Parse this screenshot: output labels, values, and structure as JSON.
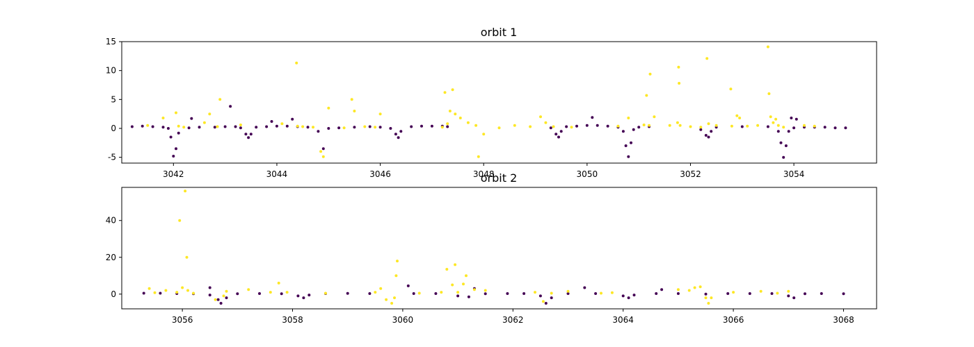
{
  "chart_data": [
    {
      "type": "scatter",
      "title": "orbit 1",
      "xlabel": "",
      "ylabel": "",
      "xlim": [
        3041.0,
        3055.6
      ],
      "ylim": [
        -6.0,
        15.0
      ],
      "xticks": [
        3042,
        3044,
        3046,
        3048,
        3050,
        3052,
        3054
      ],
      "yticks": [
        -5,
        0,
        5,
        10,
        15
      ],
      "grid": false,
      "legend": "none",
      "colors": {
        "class_0": "#440154",
        "class_1": "#fde725"
      },
      "series": [
        {
          "class": 0,
          "x": [
            3041.2,
            3041.4,
            3041.6,
            3041.8,
            3041.9,
            3041.95,
            3042.0,
            3042.05,
            3042.1,
            3042.3,
            3042.5,
            3042.8,
            3043.0,
            3043.2,
            3043.3,
            3043.4,
            3043.45,
            3043.5,
            3043.6,
            3043.8,
            3044.0,
            3044.2,
            3044.4,
            3044.6,
            3044.8,
            3044.9,
            3045.0,
            3045.2,
            3045.5,
            3045.8,
            3046.0,
            3046.2,
            3046.3,
            3046.35,
            3046.4,
            3046.6,
            3046.8,
            3047.0,
            3047.2,
            3047.3,
            3049.3,
            3049.4,
            3049.45,
            3049.5,
            3049.6,
            3049.8,
            3050.0,
            3050.2,
            3050.4,
            3050.6,
            3050.7,
            3050.75,
            3050.8,
            3050.85,
            3050.9,
            3051.0,
            3051.2,
            3052.2,
            3052.3,
            3052.35,
            3052.4,
            3052.5,
            3053.0,
            3053.5,
            3053.7,
            3053.75,
            3053.8,
            3053.85,
            3053.9,
            3054.0,
            3054.2,
            3054.4,
            3054.6,
            3054.8,
            3055.0,
            3042.35,
            3043.1,
            3043.9,
            3044.3,
            3050.1,
            3053.95,
            3054.05
          ],
          "y": [
            0.3,
            0.4,
            0.3,
            0.2,
            0.0,
            -1.5,
            -4.8,
            -3.5,
            -0.8,
            0.1,
            0.2,
            0.2,
            0.3,
            0.3,
            0.1,
            -1.0,
            -1.6,
            -1.0,
            0.2,
            0.3,
            0.4,
            0.4,
            0.3,
            0.2,
            -0.5,
            -3.5,
            0.0,
            0.1,
            0.2,
            0.3,
            0.2,
            0.0,
            -1.0,
            -1.6,
            -0.5,
            0.3,
            0.4,
            0.4,
            0.4,
            0.3,
            0.1,
            -1.0,
            -1.5,
            -0.5,
            0.3,
            0.4,
            0.5,
            0.5,
            0.4,
            0.2,
            -0.5,
            -3.0,
            -4.9,
            -2.5,
            -0.2,
            0.2,
            0.3,
            -0.2,
            -1.2,
            -1.5,
            -0.5,
            0.2,
            0.3,
            0.3,
            -0.5,
            -2.5,
            -5.0,
            -3.0,
            -0.5,
            0.1,
            0.2,
            0.2,
            0.2,
            0.1,
            0.1,
            1.7,
            3.8,
            1.2,
            1.6,
            1.9,
            1.8,
            1.6
          ]
        },
        {
          "class": 1,
          "x": [
            3041.5,
            3041.8,
            3042.05,
            3042.1,
            3042.2,
            3042.6,
            3042.7,
            3042.85,
            3042.9,
            3043.3,
            3044.1,
            3044.38,
            3044.4,
            3044.5,
            3044.7,
            3044.85,
            3044.9,
            3045.0,
            3045.3,
            3045.45,
            3045.5,
            3045.7,
            3045.9,
            3046.0,
            3047.2,
            3047.25,
            3047.3,
            3047.35,
            3047.45,
            3047.55,
            3047.7,
            3047.85,
            3047.9,
            3048.0,
            3048.3,
            3048.6,
            3048.9,
            3049.1,
            3049.2,
            3049.35,
            3049.7,
            3050.6,
            3050.8,
            3051.1,
            3051.15,
            3051.2,
            3051.22,
            3051.3,
            3051.6,
            3051.75,
            3051.77,
            3051.8,
            3052.0,
            3052.2,
            3052.35,
            3052.5,
            3052.78,
            3052.8,
            3052.9,
            3052.95,
            3053.1,
            3053.3,
            3053.5,
            3053.52,
            3053.55,
            3053.6,
            3053.7,
            3053.8,
            3054.2,
            3054.4,
            3047.4,
            3052.32,
            3051.78,
            3053.65
          ],
          "y": [
            0.5,
            1.8,
            2.7,
            0.4,
            0.2,
            1.0,
            2.5,
            0.3,
            5.0,
            0.6,
            0.8,
            11.3,
            0.4,
            0.3,
            0.2,
            -4.0,
            -4.9,
            3.5,
            0.1,
            5.0,
            3.0,
            0.3,
            0.2,
            2.5,
            0.2,
            6.2,
            0.8,
            3.0,
            2.5,
            1.8,
            1.0,
            0.5,
            -4.9,
            -1.0,
            0.1,
            0.5,
            0.3,
            2.0,
            1.0,
            0.3,
            0.2,
            0.4,
            1.8,
            0.6,
            5.7,
            0.5,
            9.4,
            2.0,
            0.5,
            1.0,
            10.6,
            0.5,
            0.3,
            0.2,
            0.8,
            0.5,
            6.8,
            0.4,
            2.2,
            1.8,
            0.4,
            0.5,
            14.1,
            6.0,
            2.0,
            1.0,
            0.5,
            0.2,
            0.5,
            0.4,
            6.7,
            12.1,
            7.8,
            1.6
          ]
        }
      ]
    },
    {
      "type": "scatter",
      "title": "orbit 2",
      "xlabel": "",
      "ylabel": "",
      "xlim": [
        3054.9,
        3068.6
      ],
      "ylim": [
        -8.0,
        58.0
      ],
      "xticks": [
        3056,
        3058,
        3060,
        3062,
        3064,
        3066,
        3068
      ],
      "yticks": [
        0,
        20,
        40
      ],
      "grid": false,
      "legend": "none",
      "colors": {
        "class_0": "#440154",
        "class_1": "#fde725"
      },
      "series": [
        {
          "class": 0,
          "x": [
            3055.3,
            3055.6,
            3055.9,
            3056.2,
            3056.5,
            3056.65,
            3056.7,
            3056.8,
            3057.0,
            3057.4,
            3057.8,
            3058.1,
            3058.2,
            3058.3,
            3058.6,
            3059.0,
            3059.4,
            3060.2,
            3060.6,
            3061.0,
            3061.2,
            3061.5,
            3061.9,
            3062.2,
            3062.5,
            3062.6,
            3062.7,
            3063.0,
            3063.5,
            3064.0,
            3064.1,
            3064.2,
            3064.6,
            3065.0,
            3065.5,
            3065.9,
            3066.3,
            3066.7,
            3067.0,
            3067.1,
            3067.3,
            3067.6,
            3068.0,
            3056.5,
            3060.1,
            3061.3,
            3063.3,
            3064.7
          ],
          "y": [
            0.5,
            0.5,
            0.3,
            0.2,
            -0.5,
            -3.0,
            -5.0,
            -2.0,
            0.2,
            0.3,
            0.2,
            -1.0,
            -2.0,
            -0.5,
            0.3,
            0.4,
            0.3,
            0.3,
            0.3,
            -1.0,
            -1.5,
            0.2,
            0.3,
            0.3,
            -1.0,
            -5.0,
            -2.0,
            0.3,
            0.3,
            -1.0,
            -2.0,
            -0.5,
            0.3,
            0.3,
            0.0,
            0.3,
            0.3,
            0.3,
            -1.0,
            -2.0,
            0.2,
            0.3,
            0.2,
            3.5,
            4.5,
            3.0,
            3.5,
            2.5
          ]
        },
        {
          "class": 1,
          "x": [
            3055.4,
            3055.5,
            3055.7,
            3055.9,
            3056.0,
            3056.05,
            3056.1,
            3056.2,
            3056.6,
            3056.75,
            3056.8,
            3057.2,
            3057.6,
            3057.75,
            3057.9,
            3058.6,
            3059.5,
            3059.6,
            3059.7,
            3059.8,
            3059.85,
            3059.9,
            3060.3,
            3060.7,
            3060.8,
            3060.9,
            3060.95,
            3061.0,
            3061.1,
            3061.15,
            3061.3,
            3061.5,
            3062.4,
            3062.55,
            3062.7,
            3063.0,
            3063.6,
            3063.8,
            3065.0,
            3065.2,
            3065.3,
            3065.4,
            3065.5,
            3065.55,
            3065.6,
            3066.0,
            3066.5,
            3066.8,
            3067.0,
            3055.95,
            3056.08,
            3059.88
          ],
          "y": [
            3.0,
            0.8,
            2.0,
            1.0,
            3.5,
            56.0,
            2.0,
            0.5,
            -3.0,
            -1.0,
            1.5,
            2.5,
            1.0,
            6.0,
            1.0,
            0.5,
            1.0,
            3.0,
            -3.0,
            -5.0,
            -2.0,
            18.0,
            0.5,
            1.0,
            13.5,
            5.0,
            16.0,
            1.0,
            5.5,
            10.0,
            2.5,
            2.0,
            1.0,
            -4.0,
            0.5,
            1.5,
            0.5,
            0.8,
            2.5,
            2.0,
            3.5,
            4.0,
            -2.0,
            -5.0,
            -2.0,
            1.0,
            1.5,
            0.5,
            1.5,
            40.0,
            20.0,
            10.0
          ]
        }
      ]
    }
  ]
}
